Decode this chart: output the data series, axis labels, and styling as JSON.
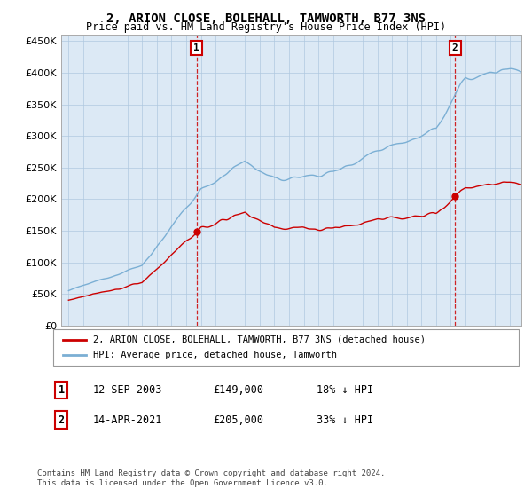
{
  "title": "2, ARION CLOSE, BOLEHALL, TAMWORTH, B77 3NS",
  "subtitle": "Price paid vs. HM Land Registry's House Price Index (HPI)",
  "legend_line1": "2, ARION CLOSE, BOLEHALL, TAMWORTH, B77 3NS (detached house)",
  "legend_line2": "HPI: Average price, detached house, Tamworth",
  "sale1_label": "1",
  "sale1_date": "12-SEP-2003",
  "sale1_price": "£149,000",
  "sale1_hpi": "18% ↓ HPI",
  "sale1_year": 2003.7,
  "sale1_value": 149000,
  "sale2_label": "2",
  "sale2_date": "14-APR-2021",
  "sale2_price": "£205,000",
  "sale2_hpi": "33% ↓ HPI",
  "sale2_year": 2021.28,
  "sale2_value": 205000,
  "hpi_color": "#7bafd4",
  "price_color": "#cc0000",
  "vline_color": "#cc0000",
  "dot_color": "#cc0000",
  "background_color": "#ffffff",
  "plot_bg_color": "#dce9f5",
  "grid_color": "#b0c8e0",
  "ylim_min": 0,
  "ylim_max": 460000,
  "xlim_min": 1994.5,
  "xlim_max": 2025.8,
  "footer": "Contains HM Land Registry data © Crown copyright and database right 2024.\nThis data is licensed under the Open Government Licence v3.0."
}
